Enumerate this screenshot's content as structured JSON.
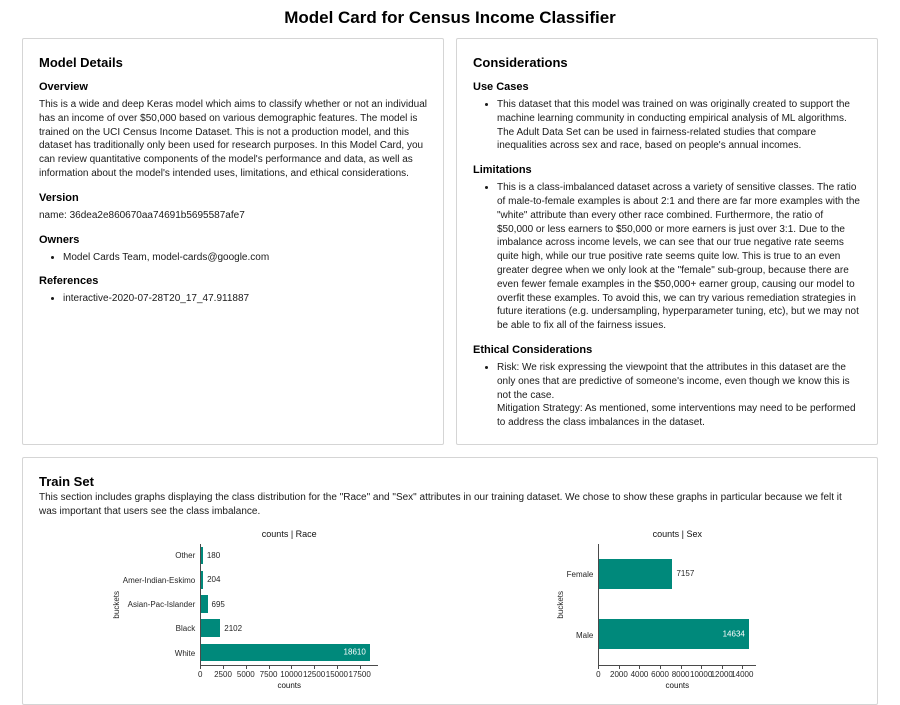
{
  "page": {
    "title": "Model Card for Census Income Classifier"
  },
  "model_details": {
    "title": "Model Details",
    "overview": {
      "heading": "Overview",
      "body": "This is a wide and deep Keras model which aims to classify whether or not an individual has an income of over $50,000 based on various demographic features. The model is trained on the UCI Census Income Dataset. This is not a production model, and this dataset has traditionally only been used for research purposes. In this Model Card, you can review quantitative components of the model's performance and data, as well as information about the model's intended uses, limitations, and ethical considerations."
    },
    "version": {
      "heading": "Version",
      "body": "name: 36dea2e860670aa74691b5695587afe7"
    },
    "owners": {
      "heading": "Owners",
      "items": [
        "Model Cards Team, model-cards@google.com"
      ]
    },
    "references": {
      "heading": "References",
      "items": [
        "interactive-2020-07-28T20_17_47.911887"
      ]
    }
  },
  "considerations": {
    "title": "Considerations",
    "use_cases": {
      "heading": "Use Cases",
      "items": [
        "This dataset that this model was trained on was originally created to support the machine learning community in conducting empirical analysis of ML algorithms. The Adult Data Set can be used in fairness-related studies that compare inequalities across sex and race, based on people's annual incomes."
      ]
    },
    "limitations": {
      "heading": "Limitations",
      "items": [
        "This is a class-imbalanced dataset across a variety of sensitive classes. The ratio of male-to-female examples is about 2:1 and there are far more examples with the \"white\" attribute than every other race combined. Furthermore, the ratio of $50,000 or less earners to $50,000 or more earners is just over 3:1. Due to the imbalance across income levels, we can see that our true negative rate seems quite high, while our true positive rate seems quite low. This is true to an even greater degree when we only look at the \"female\" sub-group, because there are even fewer female examples in the $50,000+ earner group, causing our model to overfit these examples. To avoid this, we can try various remediation strategies in future iterations (e.g. undersampling, hyperparameter tuning, etc), but we may not be able to fix all of the fairness issues."
      ]
    },
    "ethical": {
      "heading": "Ethical Considerations",
      "items": [
        "Risk: We risk expressing the viewpoint that the attributes in this dataset are the only ones that are predictive of someone's income, even though we know this is not the case.\nMitigation Strategy: As mentioned, some interventions may need to be performed to address the class imbalances in the dataset."
      ]
    }
  },
  "train_set": {
    "title": "Train Set",
    "description": "This section includes graphs displaying the class distribution for the \"Race\" and \"Sex\" attributes in our training dataset. We chose to show these graphs in particular because we felt it was important that users see the class imbalance."
  },
  "chart_data": [
    {
      "type": "bar",
      "orientation": "horizontal",
      "title": "counts | Race",
      "xlabel": "counts",
      "ylabel": "buckets",
      "categories": [
        "Other",
        "Amer-Indian-Eskimo",
        "Asian-Pac-Islander",
        "Black",
        "White"
      ],
      "values": [
        180,
        204,
        695,
        2102,
        18610
      ],
      "xticks": [
        0,
        2500,
        5000,
        7500,
        10000,
        12500,
        15000,
        17500
      ],
      "xlim": [
        0,
        19540
      ],
      "bar_color": "#00897b",
      "grid": false,
      "legend": false
    },
    {
      "type": "bar",
      "orientation": "horizontal",
      "title": "counts | Sex",
      "xlabel": "counts",
      "ylabel": "buckets",
      "categories": [
        "Female",
        "Male"
      ],
      "values": [
        7157,
        14634
      ],
      "xticks": [
        0,
        2000,
        4000,
        6000,
        8000,
        10000,
        12000,
        14000
      ],
      "xlim": [
        0,
        15365
      ],
      "bar_color": "#00897b",
      "grid": false,
      "legend": false
    }
  ]
}
